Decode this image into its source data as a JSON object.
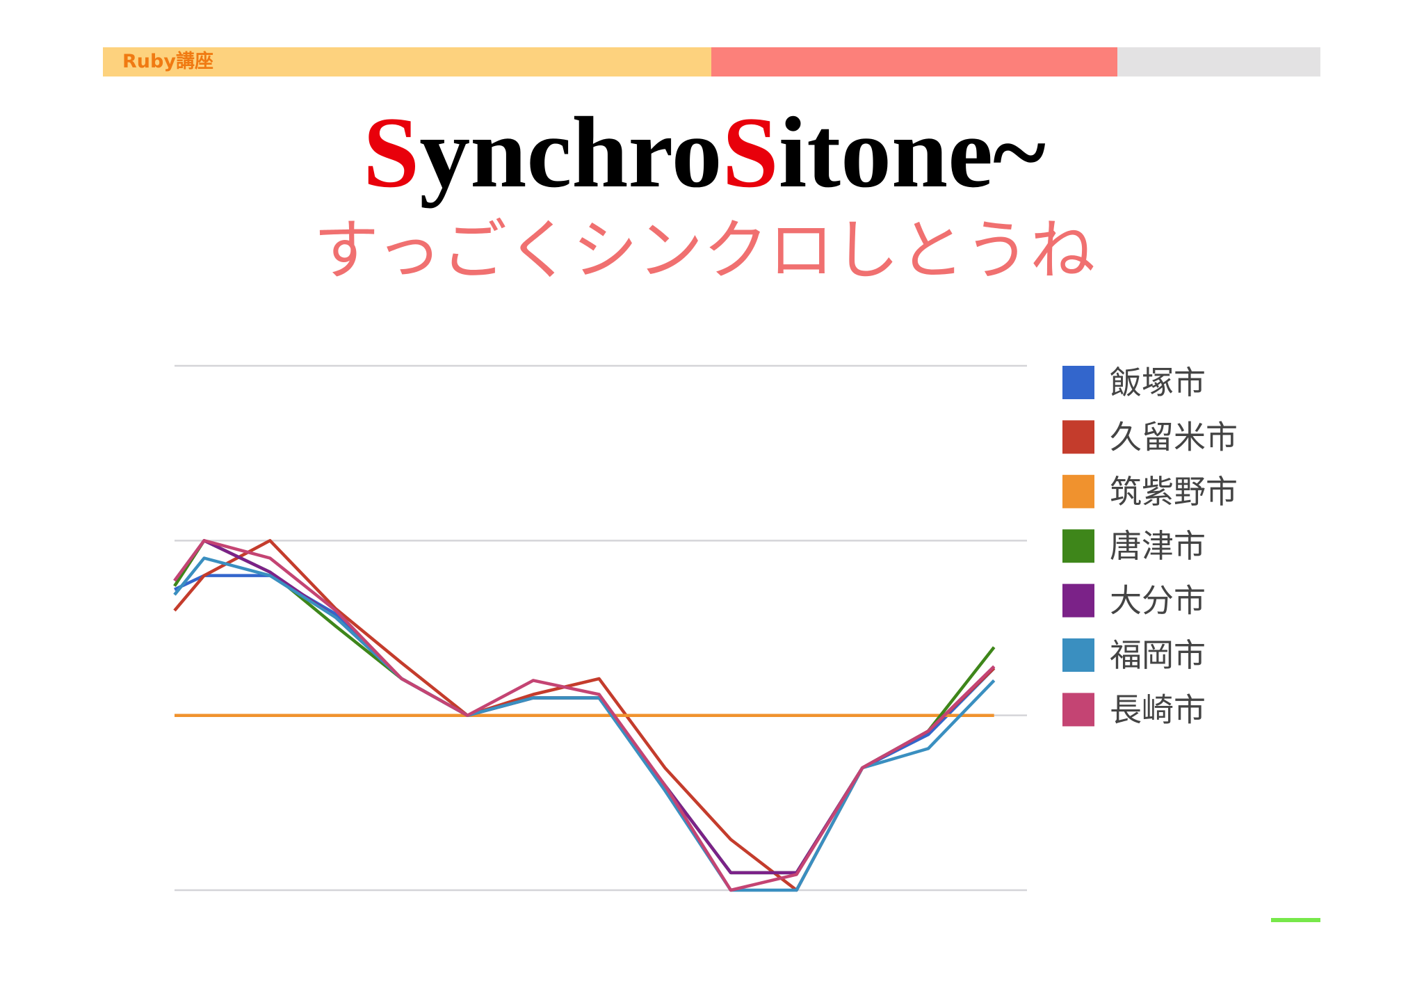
{
  "header": {
    "label": "Ruby講座"
  },
  "chart_data": {
    "type": "line",
    "title": "SynchroSitone~",
    "subtitle": "すっごくシンクロしとうね",
    "x": [
      0.55,
      1,
      2,
      3,
      4,
      5,
      6,
      7,
      8,
      9,
      10,
      11,
      12,
      13
    ],
    "xlim": [
      0.55,
      13.5
    ],
    "ylim": [
      0,
      3
    ],
    "yticks": [
      0,
      1,
      2,
      3
    ],
    "grid": true,
    "legend": "right",
    "series": [
      {
        "name": "飯塚市",
        "color": "#3366cc",
        "values": [
          1.72,
          1.8,
          1.8,
          1.58,
          1.21,
          1.0,
          1.1,
          1.1,
          0.6,
          0.1,
          0.1,
          0.7,
          0.89,
          1.27
        ]
      },
      {
        "name": "久留米市",
        "color": "#c43c2c",
        "values": [
          1.6,
          1.8,
          2.0,
          1.61,
          1.3,
          1.0,
          1.12,
          1.21,
          0.7,
          0.29,
          0.0,
          0.7,
          0.91,
          1.27
        ]
      },
      {
        "name": "筑紫野市",
        "color": "#f0922e",
        "values": [
          1.0,
          1.0,
          1.0,
          1.0,
          1.0,
          1.0,
          1.0,
          1.0,
          1.0,
          1.0,
          1.0,
          1.0,
          1.0,
          1.0
        ]
      },
      {
        "name": "唐津市",
        "color": "#3e861a",
        "values": [
          1.74,
          2.0,
          1.82,
          1.51,
          1.21,
          1.0,
          1.1,
          1.1,
          0.6,
          0.1,
          0.1,
          0.7,
          0.91,
          1.39
        ]
      },
      {
        "name": "大分市",
        "color": "#7b2288",
        "values": [
          1.77,
          2.0,
          1.82,
          1.56,
          1.21,
          1.0,
          1.1,
          1.1,
          0.6,
          0.1,
          0.1,
          0.7,
          0.91,
          1.28
        ]
      },
      {
        "name": "福岡市",
        "color": "#3a8fc0",
        "values": [
          1.69,
          1.9,
          1.8,
          1.56,
          1.21,
          1.0,
          1.1,
          1.1,
          0.57,
          0.0,
          0.0,
          0.7,
          0.81,
          1.2
        ]
      },
      {
        "name": "長崎市",
        "color": "#c44473",
        "values": [
          1.77,
          2.0,
          1.9,
          1.6,
          1.21,
          1.0,
          1.2,
          1.12,
          0.6,
          0.0,
          0.09,
          0.7,
          0.91,
          1.28
        ]
      }
    ]
  }
}
